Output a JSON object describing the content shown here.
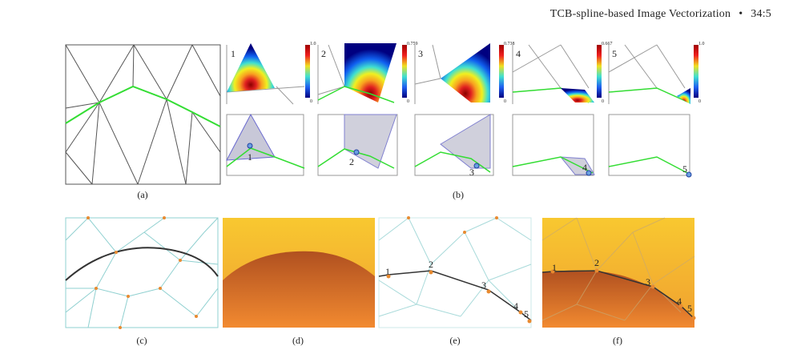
{
  "header": {
    "title": "TCB-spline-based Image Vectorization",
    "separator": "•",
    "page": "34:5"
  },
  "captions": {
    "a": "(a)",
    "b": "(b)",
    "c": "(c)",
    "d": "(d)",
    "e": "(e)",
    "f": "(f)"
  },
  "panel_b": {
    "top": [
      {
        "num": "1",
        "max": "1.0",
        "min": "0"
      },
      {
        "num": "2",
        "max": "0.759",
        "min": "0"
      },
      {
        "num": "3",
        "max": "0.738",
        "min": "0"
      },
      {
        "num": "4",
        "max": "0.667",
        "min": "0"
      },
      {
        "num": "5",
        "max": "1.0",
        "min": "0"
      }
    ],
    "bottom": [
      "1",
      "2",
      "3",
      "4",
      "5"
    ]
  },
  "panel_e": {
    "points": [
      "1",
      "2",
      "3",
      "4",
      "5"
    ]
  },
  "panel_f": {
    "points": [
      "1",
      "2",
      "3",
      "4",
      "5"
    ]
  },
  "colors": {
    "mesh": "#555555",
    "curve": "#33dd33",
    "region": "#b8b8c8",
    "cyan_mesh": "#8fd0d0",
    "orange": "#e88a30",
    "gold": "#f5c030"
  }
}
